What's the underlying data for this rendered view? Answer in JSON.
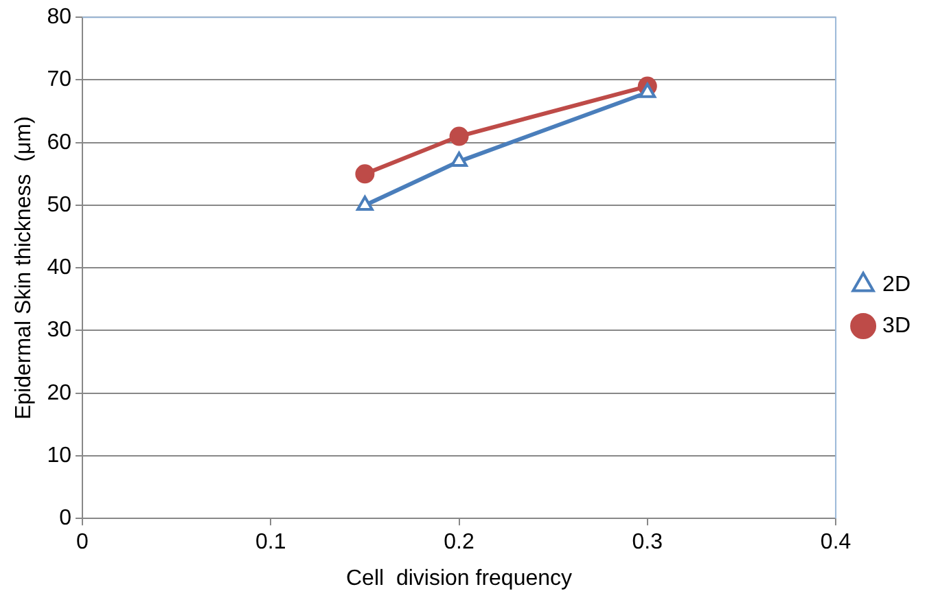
{
  "chart_data": {
    "type": "line",
    "xlabel": "Cell  division frequency",
    "ylabel": "Epidermal Skin thickness  (μm)",
    "xlim": [
      0,
      0.4
    ],
    "xticks": [
      0,
      0.1,
      0.2,
      0.3,
      0.4
    ],
    "ylim": [
      0,
      80
    ],
    "yticks": [
      0,
      10,
      20,
      30,
      40,
      50,
      60,
      70,
      80
    ],
    "grid": "y",
    "legend": "right",
    "line_style": "solid",
    "series": [
      {
        "name": "2D",
        "color": "#4a7ebb",
        "marker": "triangle",
        "x": [
          0.15,
          0.2,
          0.3
        ],
        "values": [
          50,
          57,
          68
        ]
      },
      {
        "name": "3D",
        "color": "#be4b48",
        "marker": "circle",
        "x": [
          0.15,
          0.2,
          0.3
        ],
        "values": [
          55,
          61,
          69
        ]
      }
    ]
  }
}
